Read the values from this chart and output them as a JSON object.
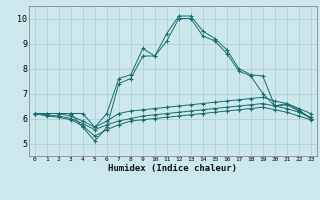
{
  "xlabel": "Humidex (Indice chaleur)",
  "bg_color": "#cce8ec",
  "grid_color": "#aaccd0",
  "line_color": "#1a6b6b",
  "xlim": [
    -0.5,
    23.5
  ],
  "ylim": [
    4.5,
    10.5
  ],
  "xticks": [
    0,
    1,
    2,
    3,
    4,
    5,
    6,
    7,
    8,
    9,
    10,
    11,
    12,
    13,
    14,
    15,
    16,
    17,
    18,
    19,
    20,
    21,
    22,
    23
  ],
  "yticks": [
    5,
    6,
    7,
    8,
    9,
    10
  ],
  "lines": [
    {
      "x": [
        0,
        1,
        2,
        3,
        4,
        5,
        6,
        7,
        8,
        9,
        10,
        11,
        12,
        13,
        14,
        15,
        16,
        17,
        18,
        19,
        20,
        21,
        22,
        23
      ],
      "y": [
        6.2,
        6.2,
        6.2,
        6.2,
        6.2,
        5.65,
        6.2,
        7.6,
        7.75,
        8.8,
        8.5,
        9.4,
        10.1,
        10.1,
        9.5,
        9.2,
        8.75,
        8.0,
        7.75,
        7.7,
        6.5,
        6.6,
        6.35,
        6.0
      ]
    },
    {
      "x": [
        3,
        4,
        5,
        6,
        7,
        8,
        9,
        10,
        11,
        12,
        13,
        14,
        15,
        16,
        17,
        18,
        19,
        20,
        21,
        22,
        23
      ],
      "y": [
        6.2,
        5.65,
        5.1,
        5.65,
        7.4,
        7.6,
        8.5,
        8.5,
        9.1,
        10.0,
        10.0,
        9.3,
        9.1,
        8.6,
        7.9,
        7.7,
        7.0,
        6.5,
        6.55,
        6.3,
        6.0
      ]
    },
    {
      "x": [
        0,
        1,
        2,
        3,
        4,
        5,
        6,
        7,
        8,
        9,
        10,
        11,
        12,
        13,
        14,
        15,
        16,
        17,
        18,
        19,
        20,
        21,
        22,
        23
      ],
      "y": [
        6.2,
        6.2,
        6.2,
        6.1,
        5.9,
        5.65,
        5.9,
        6.2,
        6.3,
        6.35,
        6.4,
        6.45,
        6.5,
        6.55,
        6.6,
        6.65,
        6.7,
        6.75,
        6.8,
        6.85,
        6.7,
        6.6,
        6.4,
        6.2
      ]
    },
    {
      "x": [
        0,
        1,
        2,
        3,
        4,
        5,
        6,
        7,
        8,
        9,
        10,
        11,
        12,
        13,
        14,
        15,
        16,
        17,
        18,
        19,
        20,
        21,
        22,
        23
      ],
      "y": [
        6.2,
        6.15,
        6.1,
        6.0,
        5.8,
        5.55,
        5.75,
        5.9,
        6.0,
        6.1,
        6.15,
        6.2,
        6.25,
        6.3,
        6.35,
        6.4,
        6.45,
        6.5,
        6.55,
        6.6,
        6.5,
        6.4,
        6.25,
        6.05
      ]
    },
    {
      "x": [
        0,
        1,
        2,
        3,
        4,
        5,
        6,
        7,
        8,
        9,
        10,
        11,
        12,
        13,
        14,
        15,
        16,
        17,
        18,
        19,
        20,
        21,
        22,
        23
      ],
      "y": [
        6.2,
        6.1,
        6.05,
        5.95,
        5.7,
        5.3,
        5.55,
        5.75,
        5.9,
        5.95,
        6.0,
        6.05,
        6.1,
        6.15,
        6.2,
        6.25,
        6.3,
        6.35,
        6.4,
        6.45,
        6.35,
        6.25,
        6.1,
        5.95
      ]
    }
  ]
}
